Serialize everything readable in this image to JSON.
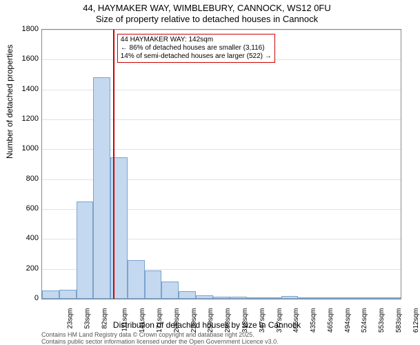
{
  "title": {
    "line1": "44, HAYMAKER WAY, WIMBLEBURY, CANNOCK, WS12 0FU",
    "line2": "Size of property relative to detached houses in Cannock"
  },
  "chart": {
    "type": "histogram",
    "background_color": "#ffffff",
    "bar_fill": "#c4d8ef",
    "bar_border": "#7aa3cf",
    "grid_color": "#888888",
    "ylabel": "Number of detached properties",
    "xlabel": "Distribution of detached houses by size in Cannock",
    "ylim": [
      0,
      1800
    ],
    "ytick_step": 200,
    "yticks": [
      0,
      200,
      400,
      600,
      800,
      1000,
      1200,
      1400,
      1600,
      1800
    ],
    "xticks": [
      "23sqm",
      "53sqm",
      "82sqm",
      "111sqm",
      "141sqm",
      "171sqm",
      "200sqm",
      "229sqm",
      "259sqm",
      "288sqm",
      "318sqm",
      "347sqm",
      "377sqm",
      "406sqm",
      "435sqm",
      "465sqm",
      "494sqm",
      "524sqm",
      "553sqm",
      "583sqm",
      "612sqm"
    ],
    "values": [
      55,
      60,
      650,
      1480,
      945,
      260,
      190,
      115,
      50,
      25,
      15,
      12,
      10,
      8,
      18,
      5,
      4,
      3,
      2,
      2,
      2
    ],
    "marker": {
      "color": "#cc0000",
      "position_index": 4,
      "annotation": {
        "line1": "44 HAYMAKER WAY: 142sqm",
        "line2": "← 86% of detached houses are smaller (3,116)",
        "line3": "14% of semi-detached houses are larger (522) →"
      }
    },
    "label_fontsize": 11,
    "tick_fontsize": 10
  },
  "footer": {
    "line1": "Contains HM Land Registry data © Crown copyright and database right 2025.",
    "line2": "Contains public sector information licensed under the Open Government Licence v3.0."
  }
}
